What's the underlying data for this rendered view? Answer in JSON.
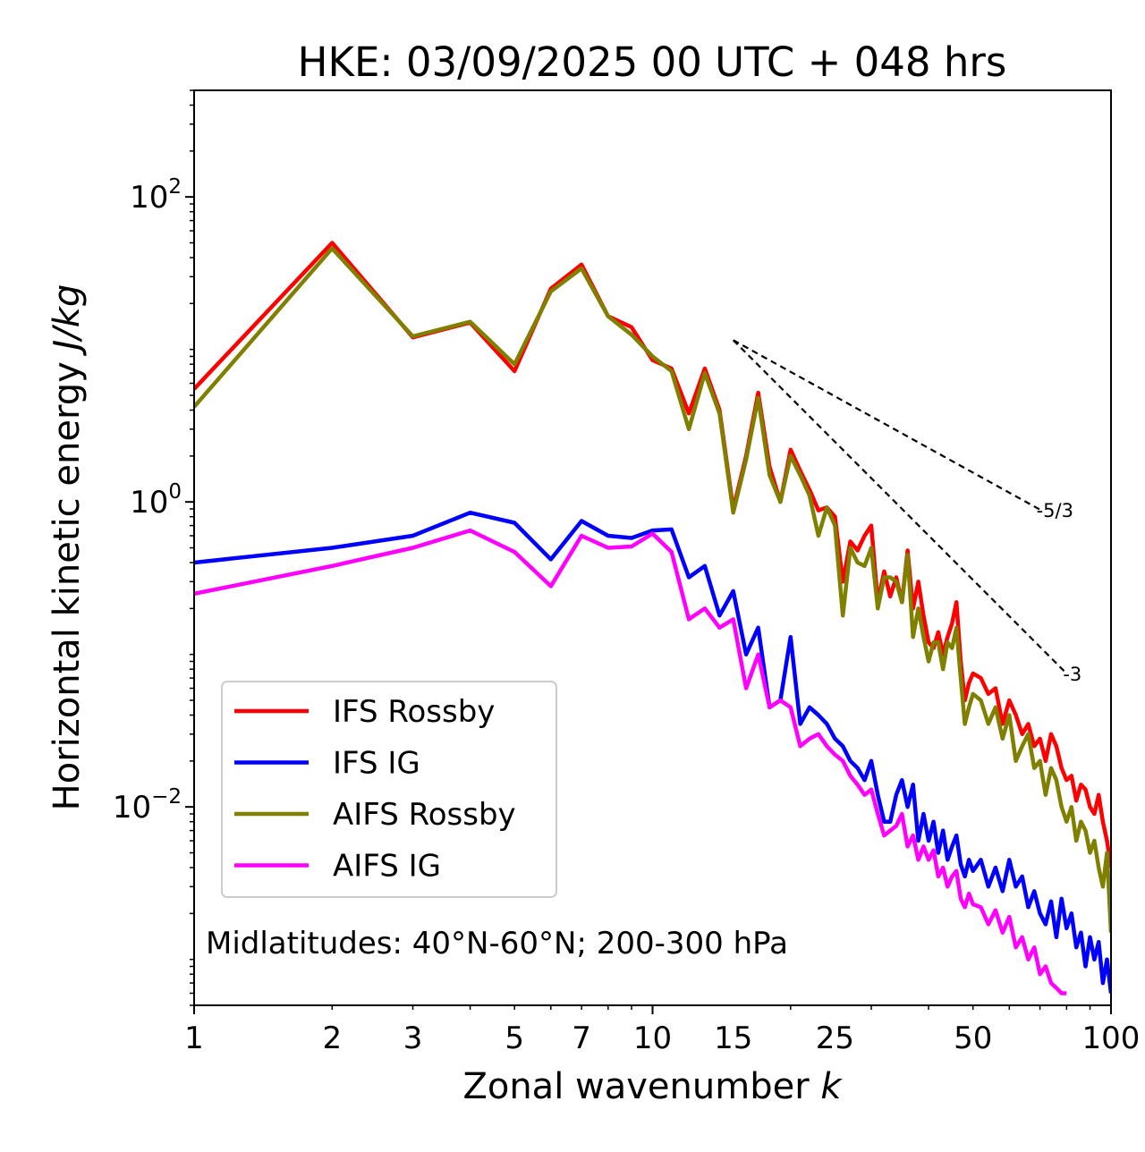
{
  "chart_data": {
    "type": "line",
    "title": "HKE: 03/09/2025 00 UTC + 048 hrs",
    "xlabel_prefix": "Zonal wavenumber ",
    "xlabel_var": "k",
    "ylabel_prefix": "Horizontal kinetic energy ",
    "ylabel_unit": "J/kg",
    "xscale": "log",
    "yscale": "log",
    "xlim": [
      1,
      100
    ],
    "ylim": [
      0.0005,
      500
    ],
    "x_ticks": [
      1,
      2,
      3,
      5,
      7,
      10,
      15,
      25,
      50,
      100
    ],
    "x_tick_labels": [
      "1",
      "2",
      "3",
      "5",
      "7",
      "10",
      "15",
      "25",
      "50",
      "100"
    ],
    "y_ticks": [
      {
        "value": 100,
        "base": "10",
        "exp": "2"
      },
      {
        "value": 1,
        "base": "10",
        "exp": "0"
      },
      {
        "value": 0.01,
        "base": "10",
        "exp": "−2"
      }
    ],
    "annotation": "Midlatitudes: 40°N-60°N; 200-300 hPa",
    "reference_lines": [
      {
        "label": "-5/3",
        "x": [
          15,
          70
        ],
        "y": [
          11.5,
          0.89
        ]
      },
      {
        "label": "-3",
        "x": [
          15,
          80
        ],
        "y": [
          11.5,
          0.075
        ]
      }
    ],
    "legend_position": "lower-left",
    "series": [
      {
        "name": "IFS Rossby",
        "color": "#ff0000",
        "x": [
          1,
          2,
          3,
          4,
          5,
          6,
          7,
          8,
          9,
          10,
          11,
          12,
          13,
          14,
          15,
          16,
          17,
          18,
          19,
          20,
          21,
          22,
          23,
          24,
          25,
          26,
          27,
          28,
          29,
          30,
          31,
          32,
          33,
          34,
          35,
          36,
          37,
          38,
          39,
          40,
          41,
          42,
          43,
          44,
          45,
          46,
          47,
          48,
          49,
          50,
          52,
          54,
          56,
          58,
          60,
          62,
          64,
          66,
          68,
          70,
          72,
          74,
          76,
          78,
          80,
          82,
          84,
          86,
          88,
          90,
          92,
          94,
          96,
          98,
          100
        ],
        "values": [
          5.5,
          50,
          12,
          15,
          7.2,
          25,
          36,
          16.5,
          14,
          8.5,
          7.5,
          3.8,
          7.5,
          4,
          0.9,
          2,
          5.2,
          1.7,
          1,
          2.2,
          1.6,
          1.2,
          0.88,
          0.92,
          0.8,
          0.3,
          0.55,
          0.48,
          0.6,
          0.7,
          0.22,
          0.35,
          0.24,
          0.32,
          0.22,
          0.48,
          0.2,
          0.3,
          0.18,
          0.12,
          0.11,
          0.14,
          0.1,
          0.13,
          0.16,
          0.22,
          0.09,
          0.05,
          0.065,
          0.075,
          0.07,
          0.055,
          0.06,
          0.035,
          0.05,
          0.04,
          0.03,
          0.035,
          0.025,
          0.028,
          0.02,
          0.03,
          0.025,
          0.018,
          0.015,
          0.016,
          0.011,
          0.014,
          0.013,
          0.01,
          0.009,
          0.012,
          0.008,
          0.006,
          0.004
        ]
      },
      {
        "name": "IFS IG",
        "color": "#0000ff",
        "x": [
          1,
          2,
          3,
          4,
          5,
          6,
          7,
          8,
          9,
          10,
          11,
          12,
          13,
          14,
          15,
          16,
          17,
          18,
          19,
          20,
          21,
          22,
          23,
          24,
          25,
          26,
          27,
          28,
          29,
          30,
          31,
          32,
          33,
          34,
          35,
          36,
          37,
          38,
          39,
          40,
          41,
          42,
          43,
          44,
          45,
          46,
          47,
          48,
          49,
          50,
          52,
          54,
          56,
          58,
          60,
          62,
          64,
          66,
          68,
          70,
          72,
          74,
          76,
          78,
          80,
          82,
          84,
          86,
          88,
          90,
          92,
          94,
          96,
          98,
          100
        ],
        "values": [
          0.4,
          0.5,
          0.6,
          0.85,
          0.73,
          0.42,
          0.75,
          0.6,
          0.58,
          0.65,
          0.66,
          0.32,
          0.38,
          0.18,
          0.26,
          0.1,
          0.15,
          0.045,
          0.05,
          0.13,
          0.035,
          0.045,
          0.04,
          0.035,
          0.028,
          0.025,
          0.02,
          0.018,
          0.015,
          0.02,
          0.012,
          0.008,
          0.008,
          0.012,
          0.015,
          0.01,
          0.014,
          0.006,
          0.009,
          0.006,
          0.008,
          0.005,
          0.007,
          0.0045,
          0.0055,
          0.0065,
          0.0042,
          0.0035,
          0.0045,
          0.0038,
          0.0045,
          0.003,
          0.004,
          0.0028,
          0.0045,
          0.003,
          0.0035,
          0.0022,
          0.0028,
          0.002,
          0.0017,
          0.0024,
          0.0014,
          0.0025,
          0.0016,
          0.002,
          0.0012,
          0.0015,
          0.0009,
          0.0014,
          0.001,
          0.0013,
          0.0007,
          0.001,
          0.0006
        ]
      },
      {
        "name": "AIFS Rossby",
        "color": "#808000",
        "x": [
          1,
          2,
          3,
          4,
          5,
          6,
          7,
          8,
          9,
          10,
          11,
          12,
          13,
          14,
          15,
          16,
          17,
          18,
          19,
          20,
          21,
          22,
          23,
          24,
          25,
          26,
          27,
          28,
          29,
          30,
          31,
          32,
          33,
          34,
          35,
          36,
          37,
          38,
          39,
          40,
          41,
          42,
          43,
          44,
          45,
          46,
          47,
          48,
          49,
          50,
          52,
          54,
          56,
          58,
          60,
          62,
          64,
          66,
          68,
          70,
          72,
          74,
          76,
          78,
          80,
          82,
          84,
          86,
          88,
          90,
          92,
          94,
          96,
          98,
          100
        ],
        "values": [
          4.2,
          46,
          12.2,
          15.2,
          8,
          24,
          34,
          16.5,
          12.5,
          9,
          7.2,
          3,
          7,
          3.8,
          0.85,
          1.9,
          4.8,
          1.5,
          1,
          2,
          1.5,
          1.1,
          0.6,
          0.92,
          0.7,
          0.18,
          0.5,
          0.4,
          0.38,
          0.5,
          0.2,
          0.32,
          0.32,
          0.3,
          0.22,
          0.45,
          0.13,
          0.2,
          0.13,
          0.09,
          0.12,
          0.12,
          0.08,
          0.12,
          0.11,
          0.15,
          0.07,
          0.035,
          0.045,
          0.055,
          0.05,
          0.035,
          0.045,
          0.028,
          0.04,
          0.02,
          0.025,
          0.03,
          0.018,
          0.02,
          0.012,
          0.018,
          0.015,
          0.01,
          0.008,
          0.01,
          0.006,
          0.008,
          0.007,
          0.005,
          0.006,
          0.004,
          0.003,
          0.005,
          0.0015
        ]
      },
      {
        "name": "AIFS IG",
        "color": "#ff00ff",
        "x": [
          1,
          2,
          3,
          4,
          5,
          6,
          7,
          8,
          9,
          10,
          11,
          12,
          13,
          14,
          15,
          16,
          17,
          18,
          19,
          20,
          21,
          22,
          23,
          24,
          25,
          26,
          27,
          28,
          29,
          30,
          31,
          32,
          33,
          34,
          35,
          36,
          37,
          38,
          39,
          40,
          41,
          42,
          43,
          44,
          45,
          46,
          47,
          48,
          49,
          50,
          52,
          54,
          56,
          58,
          60,
          62,
          64,
          66,
          68,
          70,
          72,
          74,
          76,
          78,
          80
        ],
        "values": [
          0.25,
          0.38,
          0.5,
          0.65,
          0.47,
          0.28,
          0.6,
          0.5,
          0.51,
          0.62,
          0.47,
          0.17,
          0.2,
          0.15,
          0.17,
          0.06,
          0.1,
          0.045,
          0.05,
          0.045,
          0.025,
          0.028,
          0.03,
          0.025,
          0.022,
          0.02,
          0.016,
          0.014,
          0.012,
          0.013,
          0.009,
          0.0065,
          0.007,
          0.0075,
          0.009,
          0.0055,
          0.0065,
          0.0045,
          0.0055,
          0.0045,
          0.0052,
          0.0035,
          0.004,
          0.003,
          0.0035,
          0.0038,
          0.0025,
          0.0022,
          0.0027,
          0.0023,
          0.0022,
          0.0017,
          0.0021,
          0.0015,
          0.0019,
          0.0012,
          0.0014,
          0.001,
          0.0012,
          0.0008,
          0.0009,
          0.0007,
          0.00065,
          0.0006,
          0.0006
        ]
      }
    ]
  }
}
